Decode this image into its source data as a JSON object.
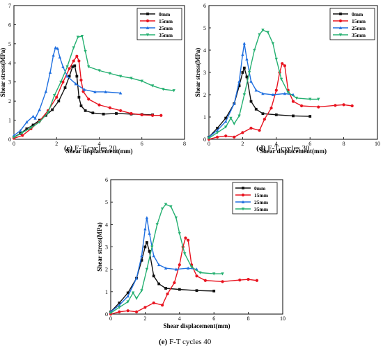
{
  "series_colors": [
    "#111111",
    "#e8131f",
    "#1f6fe0",
    "#25b071"
  ],
  "chart_data": [
    {
      "type": "line",
      "caption_letter": "(c)",
      "caption_text": " F-T cycles 20",
      "xlabel": "Shear displacement(mm)",
      "ylabel": "Shear stress(MPa)",
      "xlim": [
        0,
        8
      ],
      "ylim": [
        0,
        7
      ],
      "xticks": [
        0,
        2,
        4,
        6,
        8
      ],
      "yticks": [
        0,
        1,
        2,
        3,
        4,
        5,
        6,
        7
      ],
      "legend_position": "top-right",
      "series": [
        {
          "name": "0mm",
          "points": [
            [
              0,
              0.12
            ],
            [
              0.3,
              0.3
            ],
            [
              0.6,
              0.55
            ],
            [
              0.9,
              0.75
            ],
            [
              1.2,
              1.0
            ],
            [
              1.5,
              1.25
            ],
            [
              1.8,
              1.55
            ],
            [
              2.1,
              2.0
            ],
            [
              2.4,
              2.7
            ],
            [
              2.6,
              3.3
            ],
            [
              2.75,
              3.8
            ],
            [
              2.85,
              3.85
            ],
            [
              2.95,
              3.3
            ],
            [
              3.05,
              2.2
            ],
            [
              3.15,
              1.75
            ],
            [
              3.35,
              1.5
            ],
            [
              3.7,
              1.38
            ],
            [
              4.2,
              1.32
            ],
            [
              4.8,
              1.35
            ],
            [
              5.5,
              1.32
            ],
            [
              6.0,
              1.3
            ],
            [
              6.5,
              1.28
            ]
          ]
        },
        {
          "name": "15mm",
          "points": [
            [
              0,
              0.05
            ],
            [
              0.4,
              0.2
            ],
            [
              0.8,
              0.55
            ],
            [
              1.2,
              0.95
            ],
            [
              1.6,
              1.5
            ],
            [
              2.0,
              2.2
            ],
            [
              2.3,
              3.0
            ],
            [
              2.6,
              3.7
            ],
            [
              2.8,
              4.1
            ],
            [
              2.95,
              4.35
            ],
            [
              3.05,
              4.1
            ],
            [
              3.15,
              3.1
            ],
            [
              3.25,
              2.5
            ],
            [
              3.5,
              2.1
            ],
            [
              4.0,
              1.8
            ],
            [
              4.5,
              1.65
            ],
            [
              5.0,
              1.5
            ],
            [
              5.5,
              1.35
            ],
            [
              6.0,
              1.28
            ],
            [
              6.5,
              1.25
            ],
            [
              6.9,
              1.25
            ]
          ]
        },
        {
          "name": "25mm",
          "points": [
            [
              0,
              0.2
            ],
            [
              0.3,
              0.45
            ],
            [
              0.6,
              0.9
            ],
            [
              0.9,
              1.2
            ],
            [
              1.0,
              1.1
            ],
            [
              1.2,
              1.55
            ],
            [
              1.5,
              2.5
            ],
            [
              1.7,
              3.5
            ],
            [
              1.85,
              4.4
            ],
            [
              1.95,
              4.8
            ],
            [
              2.05,
              4.75
            ],
            [
              2.15,
              4.3
            ],
            [
              2.3,
              3.8
            ],
            [
              2.5,
              3.3
            ],
            [
              2.9,
              2.9
            ],
            [
              3.3,
              2.6
            ],
            [
              3.8,
              2.48
            ],
            [
              4.3,
              2.48
            ],
            [
              5.0,
              2.42
            ]
          ]
        },
        {
          "name": "35mm",
          "points": [
            [
              0,
              0.1
            ],
            [
              0.4,
              0.35
            ],
            [
              0.8,
              0.6
            ],
            [
              1.2,
              0.9
            ],
            [
              1.6,
              1.4
            ],
            [
              1.9,
              2.3
            ],
            [
              2.2,
              3.0
            ],
            [
              2.5,
              3.8
            ],
            [
              2.8,
              4.8
            ],
            [
              3.0,
              5.35
            ],
            [
              3.2,
              5.4
            ],
            [
              3.35,
              4.6
            ],
            [
              3.5,
              3.8
            ],
            [
              4.0,
              3.6
            ],
            [
              4.5,
              3.45
            ],
            [
              5.0,
              3.3
            ],
            [
              5.5,
              3.2
            ],
            [
              6.0,
              3.05
            ],
            [
              6.5,
              2.8
            ],
            [
              7.0,
              2.62
            ],
            [
              7.5,
              2.55
            ]
          ]
        }
      ]
    },
    {
      "type": "line",
      "caption_letter": "(d)",
      "caption_text": " F-T cycles 30",
      "xlabel": "Shear displacement(mm)",
      "ylabel": "Shear stress(MPa)",
      "xlim": [
        0,
        10
      ],
      "ylim": [
        0,
        6
      ],
      "xticks": [
        0,
        2,
        4,
        6,
        8,
        10
      ],
      "yticks": [
        0,
        1,
        2,
        3,
        4,
        5,
        6
      ],
      "legend_position": "top-right",
      "series": [
        {
          "name": "0mm",
          "points": [
            [
              0,
              0.1
            ],
            [
              0.5,
              0.5
            ],
            [
              1.0,
              0.95
            ],
            [
              1.5,
              1.6
            ],
            [
              1.8,
              2.4
            ],
            [
              2.0,
              3.0
            ],
            [
              2.1,
              3.2
            ],
            [
              2.25,
              2.8
            ],
            [
              2.5,
              1.7
            ],
            [
              2.8,
              1.35
            ],
            [
              3.2,
              1.15
            ],
            [
              4.0,
              1.1
            ],
            [
              5.0,
              1.05
            ],
            [
              6.0,
              1.03
            ]
          ]
        },
        {
          "name": "15mm",
          "points": [
            [
              0,
              0.0
            ],
            [
              0.5,
              0.1
            ],
            [
              1.0,
              0.15
            ],
            [
              1.5,
              0.1
            ],
            [
              2.0,
              0.3
            ],
            [
              2.5,
              0.5
            ],
            [
              3.0,
              0.4
            ],
            [
              3.3,
              0.9
            ],
            [
              3.7,
              1.4
            ],
            [
              4.0,
              2.2
            ],
            [
              4.2,
              3.0
            ],
            [
              4.35,
              3.4
            ],
            [
              4.5,
              3.3
            ],
            [
              4.7,
              2.2
            ],
            [
              5.0,
              1.7
            ],
            [
              5.5,
              1.5
            ],
            [
              6.5,
              1.45
            ],
            [
              7.5,
              1.52
            ],
            [
              8.0,
              1.55
            ],
            [
              8.5,
              1.5
            ]
          ]
        },
        {
          "name": "25mm",
          "points": [
            [
              0,
              0.1
            ],
            [
              0.5,
              0.4
            ],
            [
              1.0,
              0.8
            ],
            [
              1.5,
              1.6
            ],
            [
              1.8,
              2.6
            ],
            [
              2.0,
              3.8
            ],
            [
              2.1,
              4.3
            ],
            [
              2.25,
              3.6
            ],
            [
              2.5,
              2.6
            ],
            [
              2.8,
              2.2
            ],
            [
              3.2,
              2.05
            ],
            [
              3.8,
              2.0
            ],
            [
              4.5,
              2.05
            ],
            [
              5.0,
              2.0
            ]
          ]
        },
        {
          "name": "35mm",
          "points": [
            [
              0,
              0.05
            ],
            [
              0.5,
              0.3
            ],
            [
              1.0,
              0.55
            ],
            [
              1.3,
              0.95
            ],
            [
              1.5,
              0.7
            ],
            [
              1.8,
              1.05
            ],
            [
              2.1,
              2.0
            ],
            [
              2.4,
              3.0
            ],
            [
              2.7,
              4.0
            ],
            [
              3.0,
              4.7
            ],
            [
              3.2,
              4.9
            ],
            [
              3.5,
              4.8
            ],
            [
              3.8,
              4.3
            ],
            [
              4.0,
              3.6
            ],
            [
              4.3,
              2.7
            ],
            [
              4.7,
              2.1
            ],
            [
              5.2,
              1.85
            ],
            [
              6.0,
              1.8
            ],
            [
              6.5,
              1.8
            ]
          ]
        }
      ]
    },
    {
      "type": "line",
      "caption_letter": "(e)",
      "caption_text": " F-T cycles 40",
      "xlabel": "Shear displacement(mm)",
      "ylabel": "Shear stress(MPa)",
      "xlim": [
        0,
        10
      ],
      "ylim": [
        0,
        6
      ],
      "xticks": [
        0,
        2,
        4,
        6,
        8,
        10
      ],
      "yticks": [
        0,
        1,
        2,
        3,
        4,
        5,
        6
      ],
      "legend_position": "top-right",
      "series": [
        {
          "name": "0mm",
          "points": [
            [
              0,
              0.1
            ],
            [
              0.5,
              0.5
            ],
            [
              1.0,
              0.95
            ],
            [
              1.5,
              1.6
            ],
            [
              1.8,
              2.4
            ],
            [
              2.0,
              3.0
            ],
            [
              2.1,
              3.2
            ],
            [
              2.25,
              2.8
            ],
            [
              2.5,
              1.7
            ],
            [
              2.8,
              1.35
            ],
            [
              3.2,
              1.15
            ],
            [
              4.0,
              1.1
            ],
            [
              5.0,
              1.05
            ],
            [
              6.0,
              1.03
            ]
          ]
        },
        {
          "name": "15mm",
          "points": [
            [
              0,
              0.0
            ],
            [
              0.5,
              0.1
            ],
            [
              1.0,
              0.15
            ],
            [
              1.5,
              0.1
            ],
            [
              2.0,
              0.3
            ],
            [
              2.5,
              0.5
            ],
            [
              3.0,
              0.4
            ],
            [
              3.3,
              0.9
            ],
            [
              3.7,
              1.4
            ],
            [
              4.0,
              2.2
            ],
            [
              4.2,
              3.0
            ],
            [
              4.35,
              3.4
            ],
            [
              4.5,
              3.3
            ],
            [
              4.7,
              2.2
            ],
            [
              5.0,
              1.7
            ],
            [
              5.5,
              1.5
            ],
            [
              6.5,
              1.45
            ],
            [
              7.5,
              1.52
            ],
            [
              8.0,
              1.55
            ],
            [
              8.5,
              1.5
            ]
          ]
        },
        {
          "name": "25mm",
          "points": [
            [
              0,
              0.1
            ],
            [
              0.5,
              0.4
            ],
            [
              1.0,
              0.8
            ],
            [
              1.5,
              1.6
            ],
            [
              1.8,
              2.6
            ],
            [
              2.0,
              3.8
            ],
            [
              2.1,
              4.3
            ],
            [
              2.25,
              3.6
            ],
            [
              2.5,
              2.6
            ],
            [
              2.8,
              2.2
            ],
            [
              3.2,
              2.05
            ],
            [
              3.8,
              2.0
            ],
            [
              4.5,
              2.05
            ],
            [
              5.0,
              2.0
            ]
          ]
        },
        {
          "name": "35mm",
          "points": [
            [
              0,
              0.05
            ],
            [
              0.5,
              0.3
            ],
            [
              1.0,
              0.55
            ],
            [
              1.3,
              0.95
            ],
            [
              1.5,
              0.7
            ],
            [
              1.8,
              1.05
            ],
            [
              2.1,
              2.0
            ],
            [
              2.4,
              3.0
            ],
            [
              2.7,
              4.0
            ],
            [
              3.0,
              4.7
            ],
            [
              3.2,
              4.9
            ],
            [
              3.5,
              4.8
            ],
            [
              3.8,
              4.3
            ],
            [
              4.0,
              3.6
            ],
            [
              4.3,
              2.7
            ],
            [
              4.7,
              2.1
            ],
            [
              5.2,
              1.85
            ],
            [
              6.0,
              1.8
            ],
            [
              6.5,
              1.8
            ]
          ]
        }
      ]
    }
  ]
}
